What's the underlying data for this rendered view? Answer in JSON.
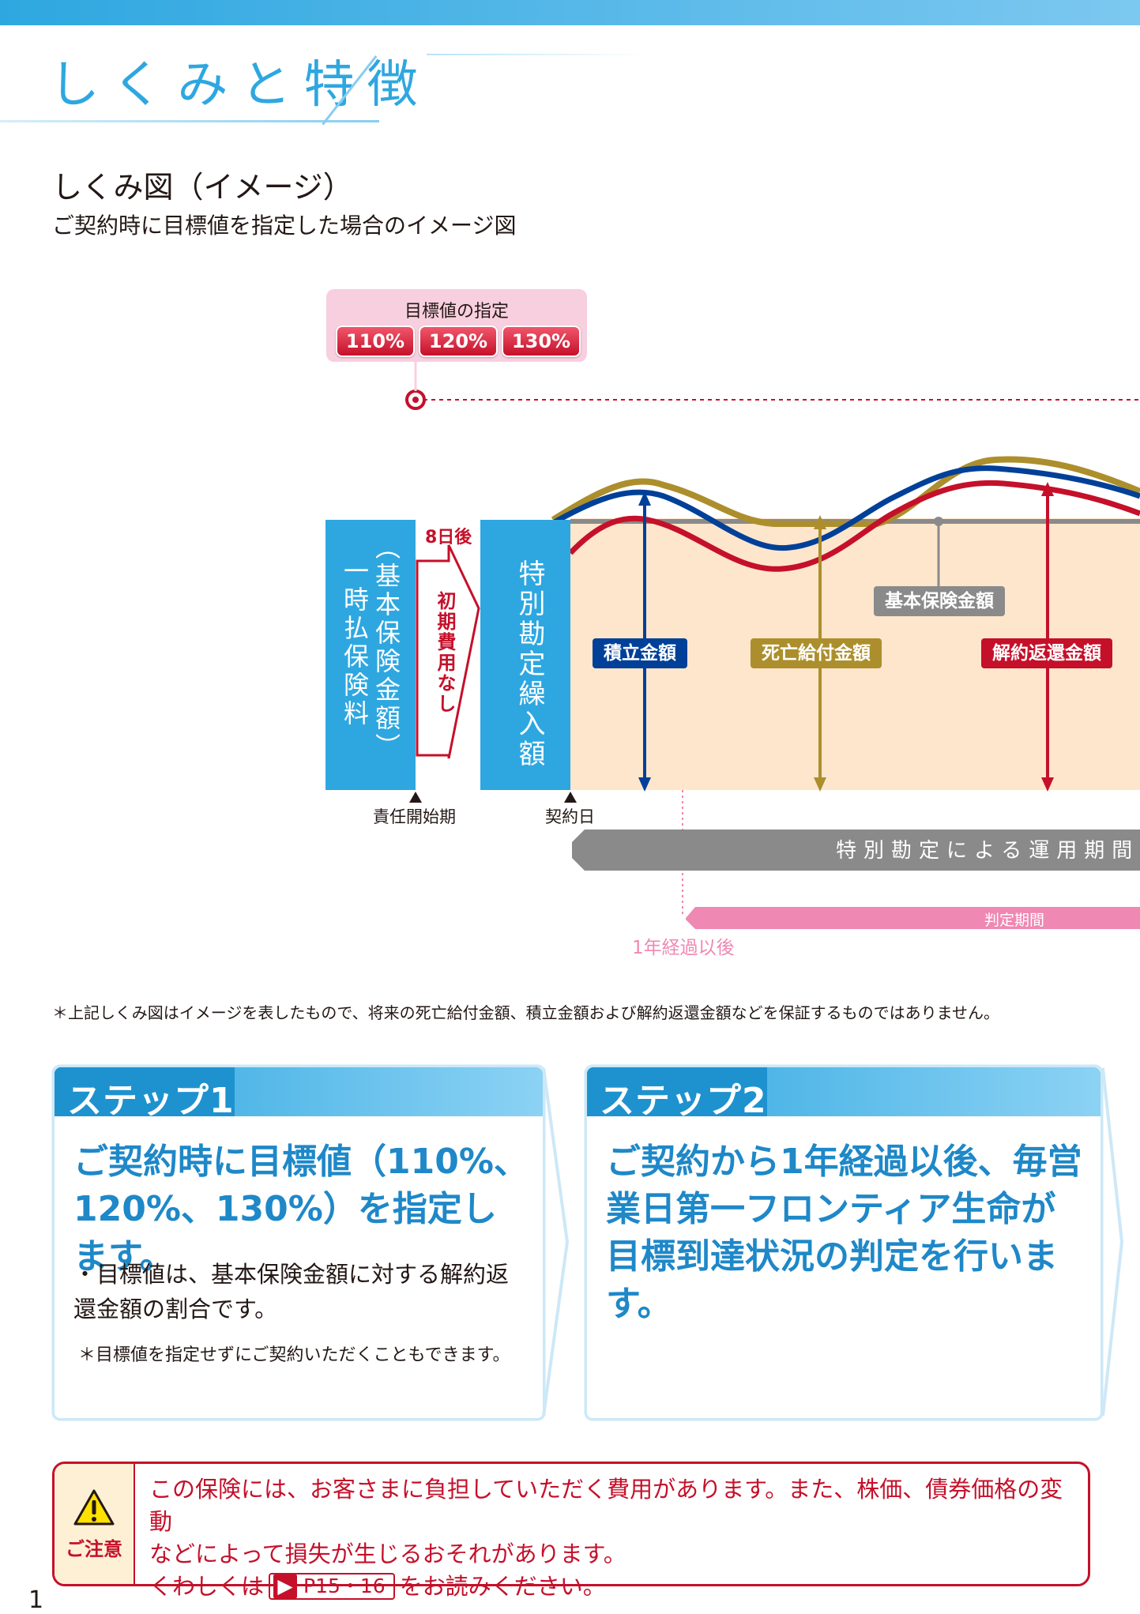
{
  "header": {
    "title": "しくみと特徴"
  },
  "section": {
    "title": "しくみ図（イメージ）",
    "caption": "ご契約時に目標値を指定した場合のイメージ図"
  },
  "diagram": {
    "target_box": {
      "title": "目標値の指定",
      "options": [
        "110%",
        "120%",
        "130%"
      ]
    },
    "premium_box": {
      "line1": "一時払保険料",
      "line2": "（基本保険金額）"
    },
    "arrow": {
      "top_label": "8日後",
      "inner_label": "初期費用なし"
    },
    "special_box": {
      "label": "特別勘定繰入額"
    },
    "tags": {
      "accumulated": "積立金額",
      "death": "死亡給付金額",
      "basic": "基本保険金額",
      "surrender": "解約返還金額"
    },
    "milestones": {
      "liability_start": "責任開始期",
      "contract_day": "契約日"
    },
    "periods": {
      "operation": "特別勘定による運用期間",
      "judgment": "判定期間",
      "one_year": "1年経過以後"
    }
  },
  "disclaimer": "＊上記しくみ図はイメージを表したもので、将来の死亡給付金額、積立金額および解約返還金額などを保証するものではありません。",
  "steps": [
    {
      "label": "ステップ1",
      "main": "ご契約時に目標値（110%、120%、130%）を指定します。",
      "bullet": "・目標値は、基本保険金額に対する解約返還金額の割合です。",
      "note": "＊目標値を指定せずにご契約いただくこともできます。"
    },
    {
      "label": "ステップ2",
      "main": "ご契約から1年経過以後、毎営業日第一フロンティア生命が目標到達状況の判定を行います。"
    }
  ],
  "caution": {
    "label": "ご注意",
    "line1": "この保険には、お客さまに負担していただく費用があります。また、株価、債券価格の変動",
    "line2": "などによって損失が生じるおそれがあります。",
    "line3_prefix": "くわしくは",
    "page_ref": "P15・16",
    "line3_suffix": "をお読みください。"
  },
  "page_number": "1",
  "colors": {
    "accent_blue": "#2ea7e0",
    "navy": "#004098",
    "gold": "#ac8f2c",
    "red": "#c5102a",
    "pink": "#ef88b3",
    "gray": "#8a8a8a",
    "beige": "#fde6cc"
  }
}
